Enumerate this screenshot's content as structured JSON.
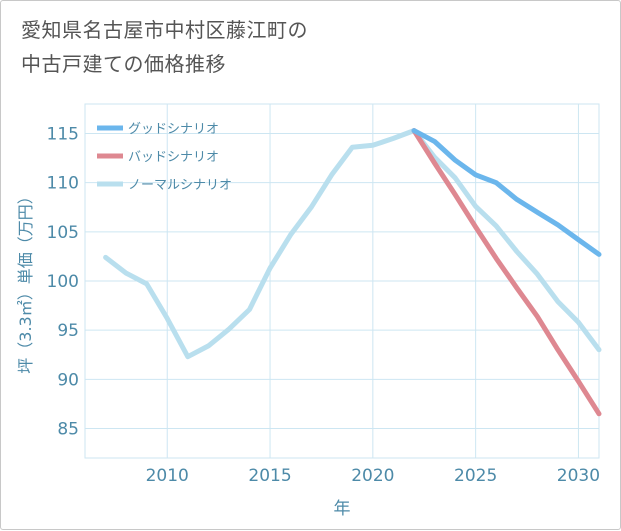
{
  "title": {
    "line1": "愛知県名古屋市中村区藤江町の",
    "line2": "中古戸建ての価格推移"
  },
  "colors": {
    "good": "#6bb6ec",
    "bad": "#de8891",
    "normal": "#b9dfee",
    "grid": "#cde6f2",
    "axis_text": "#4d8aa8"
  },
  "chart_data": {
    "type": "line",
    "title": "愛知県名古屋市中村区藤江町の中古戸建ての価格推移",
    "xlabel": "年",
    "ylabel": "坪（3.3㎡）単価（万円）",
    "xlim": [
      2006,
      2031
    ],
    "ylim": [
      82,
      118
    ],
    "xticks": [
      2010,
      2015,
      2020,
      2025,
      2030
    ],
    "yticks": [
      85,
      90,
      95,
      100,
      105,
      110,
      115
    ],
    "grid": true,
    "legend_position": "top-left",
    "series": [
      {
        "name": "グッドシナリオ",
        "color": "#6bb6ec",
        "x": [
          2022,
          2023,
          2024,
          2025,
          2026,
          2027,
          2028,
          2029,
          2030,
          2031
        ],
        "y": [
          115.3,
          114.2,
          112.3,
          110.8,
          110.0,
          108.3,
          107.0,
          105.7,
          104.2,
          102.7
        ]
      },
      {
        "name": "バッドシナリオ",
        "color": "#de8891",
        "x": [
          2022,
          2023,
          2024,
          2025,
          2026,
          2027,
          2028,
          2029,
          2030,
          2031
        ],
        "y": [
          115.3,
          112.0,
          108.8,
          105.5,
          102.3,
          99.3,
          96.4,
          93.0,
          89.8,
          86.5
        ]
      },
      {
        "name": "ノーマルシナリオ",
        "color": "#b9dfee",
        "x": [
          2007,
          2008,
          2009,
          2010,
          2011,
          2012,
          2013,
          2014,
          2015,
          2016,
          2017,
          2018,
          2019,
          2020,
          2021,
          2022,
          2023,
          2024,
          2025,
          2026,
          2027,
          2028,
          2029,
          2030,
          2031
        ],
        "y": [
          102.4,
          100.8,
          99.7,
          96.2,
          92.3,
          93.4,
          95.1,
          97.1,
          101.3,
          104.7,
          107.5,
          110.8,
          113.6,
          113.8,
          114.5,
          115.3,
          112.6,
          110.5,
          107.6,
          105.6,
          103.0,
          100.7,
          97.9,
          95.8,
          93.0
        ]
      }
    ]
  }
}
